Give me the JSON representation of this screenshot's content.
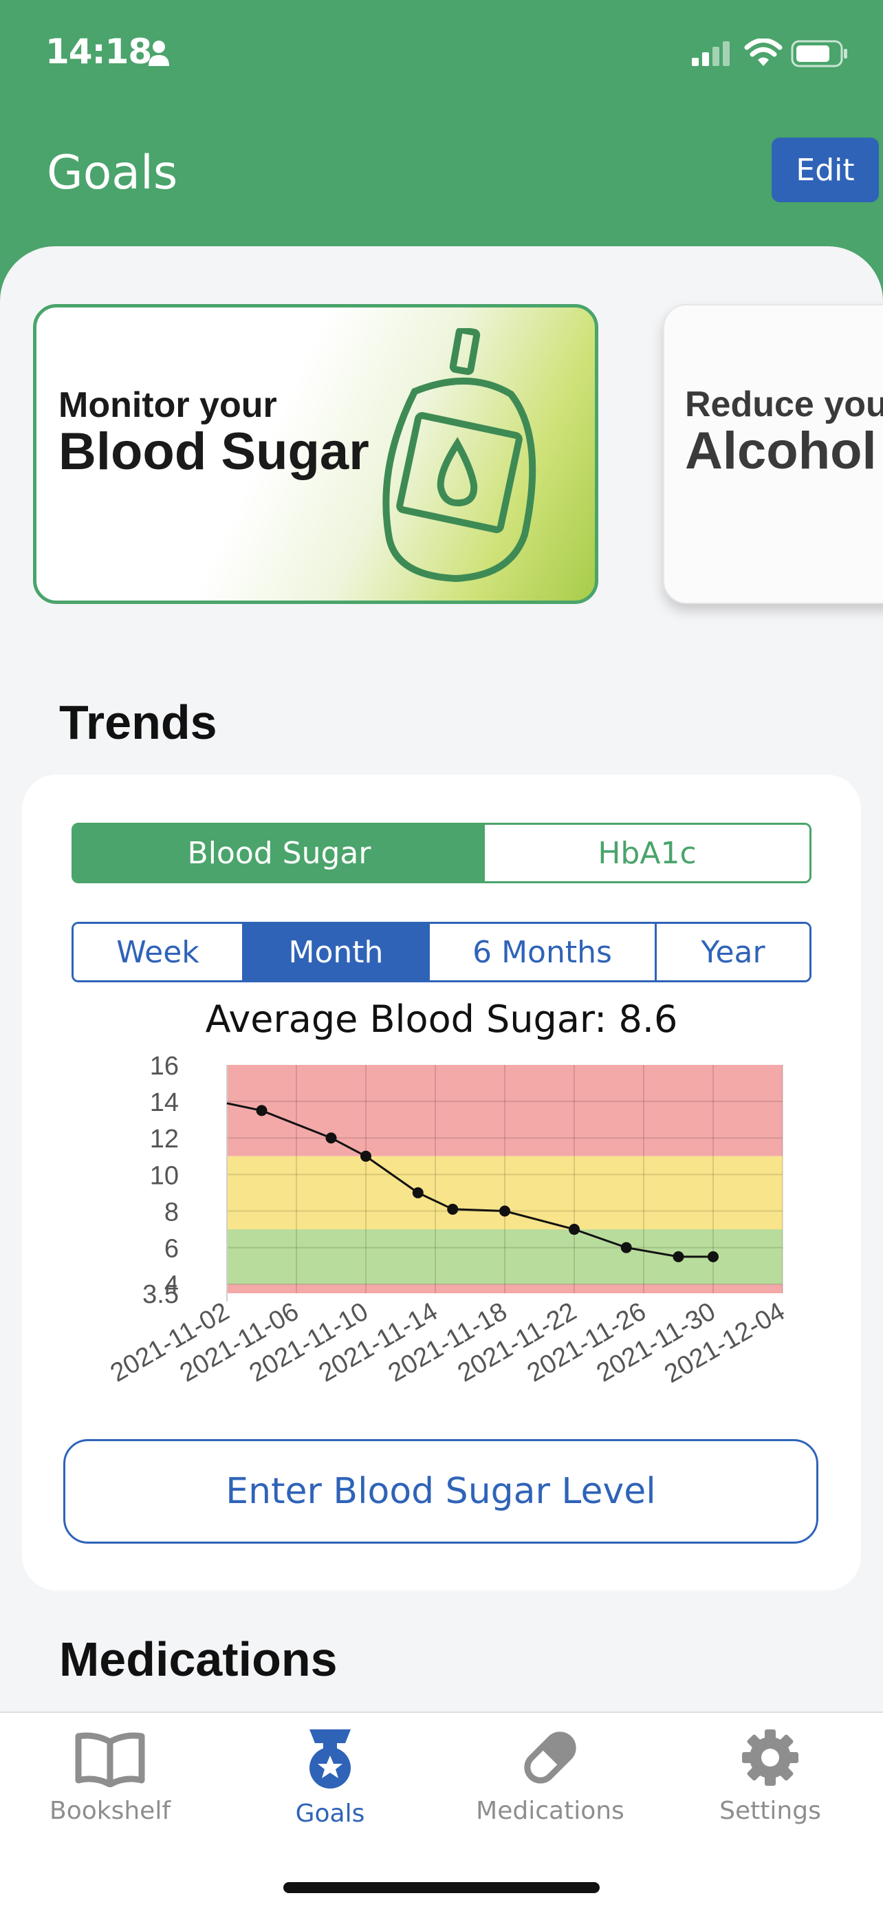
{
  "status_bar": {
    "time": "14:18"
  },
  "header": {
    "title": "Goals",
    "edit_label": "Edit"
  },
  "goal_cards": [
    {
      "line1": "Monitor your",
      "line2": "Blood Sugar"
    },
    {
      "line1": "Reduce your",
      "line2": "Alcohol"
    }
  ],
  "trends": {
    "title": "Trends",
    "metric_tabs": [
      "Blood Sugar",
      "HbA1c"
    ],
    "metric_selected": "Blood Sugar",
    "period_tabs": [
      "Week",
      "Month",
      "6 Months",
      "Year"
    ],
    "period_selected": "Month",
    "enter_label": "Enter Blood Sugar Level"
  },
  "chart_data": {
    "type": "line",
    "title": "Average Blood Sugar: 8.6",
    "xlabel": "",
    "ylabel": "",
    "ylim": [
      3.5,
      16
    ],
    "y_ticks": [
      "16",
      "14",
      "12",
      "10",
      "8",
      "6",
      "4",
      "3.5"
    ],
    "x_ticks": [
      "2021-11-02",
      "2021-11-06",
      "2021-11-10",
      "2021-11-14",
      "2021-11-18",
      "2021-11-22",
      "2021-11-26",
      "2021-11-30",
      "2021-12-04"
    ],
    "bands": [
      {
        "from": 11,
        "to": 16,
        "color": "#f3a9a8"
      },
      {
        "from": 7,
        "to": 11,
        "color": "#f8e48a"
      },
      {
        "from": 4,
        "to": 7,
        "color": "#b8dc9c"
      },
      {
        "from": 3.5,
        "to": 4,
        "color": "#f3a9a8"
      }
    ],
    "grid": true,
    "series": [
      {
        "name": "",
        "line_start": {
          "x": "2021-11-02",
          "y": 13.9
        },
        "points": [
          {
            "x": "2021-11-04",
            "y": 13.5
          },
          {
            "x": "2021-11-08",
            "y": 12.0
          },
          {
            "x": "2021-11-10",
            "y": 11.0
          },
          {
            "x": "2021-11-13",
            "y": 9.0
          },
          {
            "x": "2021-11-15",
            "y": 8.1
          },
          {
            "x": "2021-11-18",
            "y": 8.0
          },
          {
            "x": "2021-11-22",
            "y": 7.0
          },
          {
            "x": "2021-11-25",
            "y": 6.0
          },
          {
            "x": "2021-11-28",
            "y": 5.5
          },
          {
            "x": "2021-11-30",
            "y": 5.5
          }
        ]
      }
    ]
  },
  "medications": {
    "title": "Medications"
  },
  "tab_bar": {
    "items": [
      {
        "label": "Bookshelf",
        "icon": "book-icon"
      },
      {
        "label": "Goals",
        "icon": "medal-icon"
      },
      {
        "label": "Medications",
        "icon": "pill-icon"
      },
      {
        "label": "Settings",
        "icon": "gear-icon"
      }
    ],
    "selected": "Goals"
  },
  "colors": {
    "brand_green": "#4aa46b",
    "brand_blue": "#2f63b8"
  }
}
